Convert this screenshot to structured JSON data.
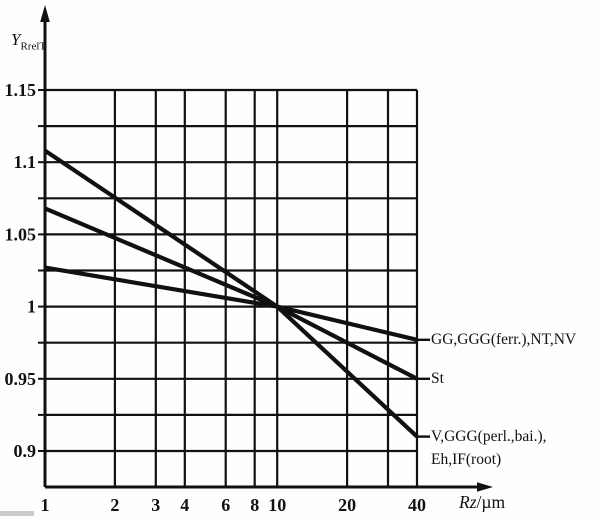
{
  "figure": {
    "background": "#fefefe",
    "ink": "#111111"
  },
  "chart_data": {
    "type": "line",
    "grid": true,
    "x_axis": {
      "symbol": "Rz",
      "unit": "/µm",
      "scale": "log",
      "min": 1,
      "max": 40,
      "ticks": [
        1,
        2,
        3,
        4,
        6,
        8,
        10,
        20,
        30,
        40
      ],
      "tick_labels": [
        "1",
        "2",
        "3",
        "4",
        "6",
        "8",
        "10",
        "20",
        "",
        "40"
      ],
      "gridline_values": [
        2,
        3,
        4,
        6,
        8,
        10,
        20,
        30,
        40
      ]
    },
    "y_axis": {
      "symbol": "Y",
      "subscript": "RrelT",
      "min": 0.9,
      "max": 1.15,
      "grid_step": 0.025,
      "labels": [
        {
          "value": 1.15,
          "label": "1.15"
        },
        {
          "value": 1.1,
          "label": "1.1"
        },
        {
          "value": 1.05,
          "label": "1.05"
        },
        {
          "value": 1,
          "label": "1"
        },
        {
          "value": 0.95,
          "label": "0.95"
        },
        {
          "value": 0.9,
          "label": "0.9"
        }
      ]
    },
    "series": [
      {
        "name": "GG,GGG(ferr.),NT,NV",
        "label_lines": [
          "GG,GGG(ferr.),NT,NV"
        ],
        "points": [
          [
            1,
            1.027
          ],
          [
            10,
            1.0
          ],
          [
            40,
            0.977
          ]
        ]
      },
      {
        "name": "St",
        "label_lines": [
          "St"
        ],
        "points": [
          [
            1,
            1.068
          ],
          [
            10,
            1.0
          ],
          [
            40,
            0.95
          ]
        ]
      },
      {
        "name": "V,GGG(perl.,bai.),Eh,IF(root)",
        "label_lines": [
          "V,GGG(perl.,bai.),",
          "Eh,IF(root)"
        ],
        "points": [
          [
            1,
            1.108
          ],
          [
            10,
            1.0
          ],
          [
            40,
            0.91
          ]
        ]
      }
    ]
  }
}
